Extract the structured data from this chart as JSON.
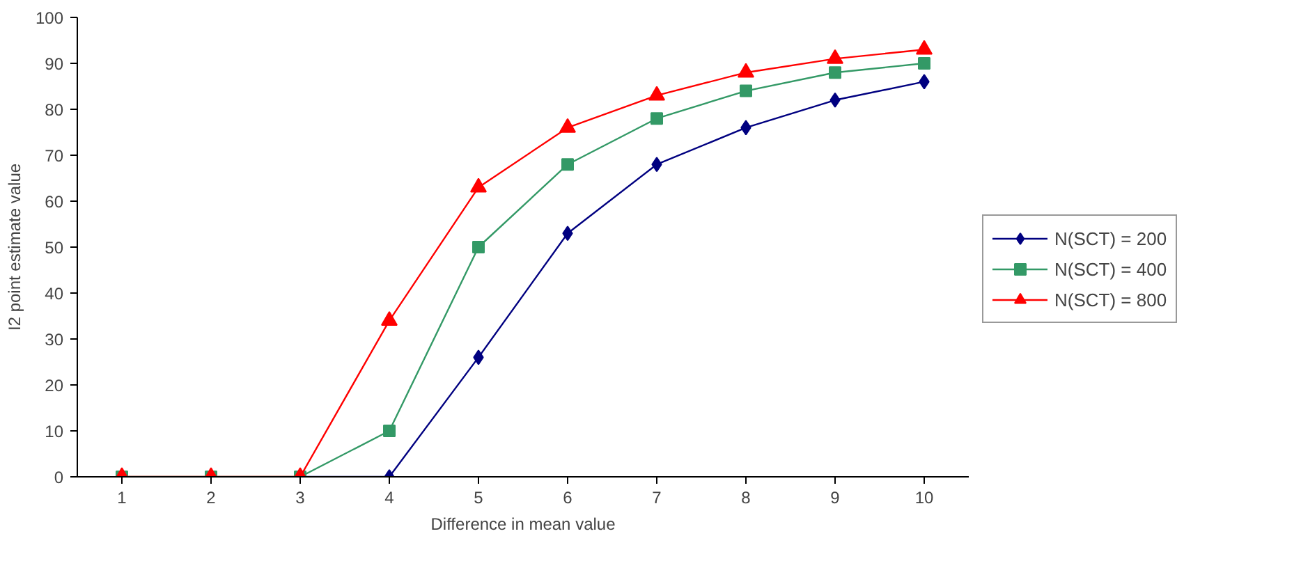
{
  "chart_data": {
    "type": "line",
    "xlabel": "Difference in mean value",
    "ylabel": "I2 point estimate value",
    "categories": [
      "1",
      "2",
      "3",
      "4",
      "5",
      "6",
      "7",
      "8",
      "9",
      "10"
    ],
    "ylim": [
      0,
      100
    ],
    "yticks": [
      0,
      10,
      20,
      30,
      40,
      50,
      60,
      70,
      80,
      90,
      100
    ],
    "grid": false,
    "legend": "right",
    "series": [
      {
        "name": "N(SCT) = 200",
        "color": "#000080",
        "marker": "diamond",
        "values": [
          null,
          null,
          0,
          0,
          26,
          53,
          68,
          76,
          82,
          86
        ]
      },
      {
        "name": "N(SCT) = 400",
        "color": "#339966",
        "marker": "square",
        "values": [
          0,
          0,
          0,
          10,
          50,
          68,
          78,
          84,
          88,
          90
        ]
      },
      {
        "name": "N(SCT) = 800",
        "color": "#ff0000",
        "marker": "triangle",
        "values": [
          0,
          0,
          0,
          34,
          63,
          76,
          83,
          88,
          91,
          93
        ]
      }
    ]
  }
}
